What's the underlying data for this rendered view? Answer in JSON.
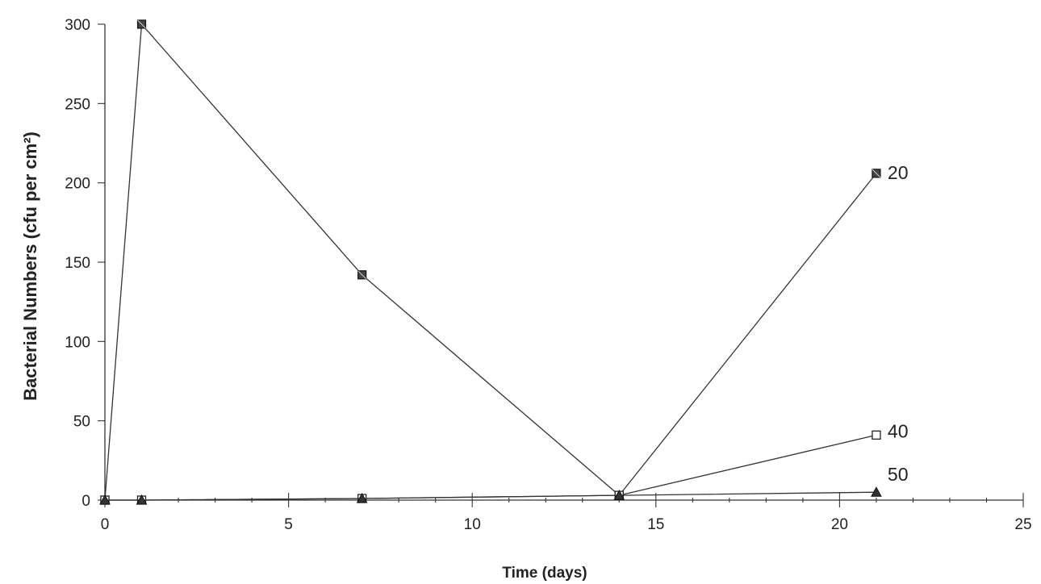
{
  "chart_data": {
    "type": "line",
    "title": "",
    "xlabel": "Time (days)",
    "ylabel": "Bacterial Numbers (cfu per cm²)",
    "xlim": [
      0,
      25
    ],
    "ylim": [
      0,
      300
    ],
    "xticks": [
      0,
      5,
      10,
      15,
      20,
      25
    ],
    "yticks": [
      0,
      50,
      100,
      150,
      200,
      250,
      300
    ],
    "grid": false,
    "legend": "inline labels at line ends",
    "series": [
      {
        "name": "20",
        "marker": "filled-square",
        "x": [
          0,
          1,
          7,
          14,
          21
        ],
        "y": [
          0,
          300,
          142,
          3,
          206
        ]
      },
      {
        "name": "40",
        "marker": "open-square",
        "x": [
          0,
          1,
          7,
          14,
          21
        ],
        "y": [
          0,
          0,
          1,
          3,
          41
        ]
      },
      {
        "name": "50",
        "marker": "triangle",
        "x": [
          0,
          1,
          7,
          14,
          21
        ],
        "y": [
          0,
          0,
          1,
          3,
          5
        ]
      }
    ]
  }
}
